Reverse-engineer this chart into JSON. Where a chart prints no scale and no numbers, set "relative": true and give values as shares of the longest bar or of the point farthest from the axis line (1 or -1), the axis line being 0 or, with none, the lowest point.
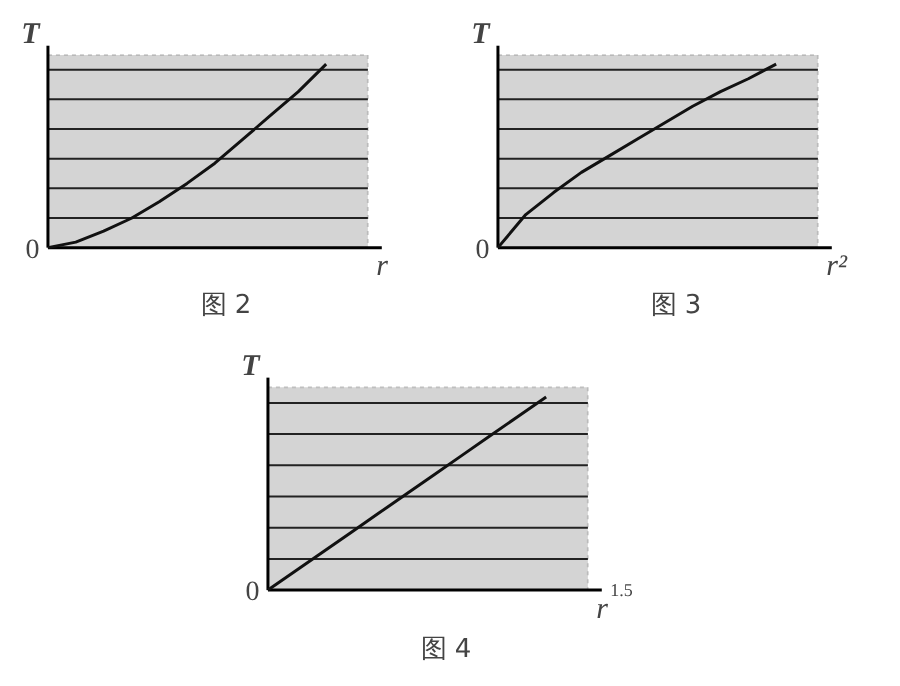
{
  "chart_data": [
    {
      "type": "line",
      "title": "图 2",
      "xlabel": "r",
      "ylabel": "T",
      "relative": true,
      "grid": "y",
      "color": "#111111",
      "annotations": [
        "0"
      ],
      "categories": [
        null,
        null,
        null,
        null,
        null,
        null,
        null,
        null,
        null,
        null,
        null
      ],
      "values": [
        0,
        0.03,
        0.09,
        0.16,
        0.25,
        0.35,
        0.46,
        0.59,
        0.72,
        0.85,
        1.0
      ]
    },
    {
      "type": "line",
      "title": "图 3",
      "xlabel": "r²",
      "ylabel": "T",
      "relative": true,
      "grid": "y",
      "color": "#111111",
      "annotations": [
        "0"
      ],
      "categories": [
        null,
        null,
        null,
        null,
        null,
        null,
        null,
        null,
        null,
        null,
        null
      ],
      "values": [
        0,
        0.18,
        0.3,
        0.41,
        0.5,
        0.59,
        0.68,
        0.77,
        0.85,
        0.92,
        1.0
      ]
    },
    {
      "type": "line",
      "title": "图 4",
      "xlabel": "r$^{1.5}$",
      "ylabel": "T",
      "relative": true,
      "grid": "y",
      "color": "#111111",
      "annotations": [
        "0"
      ],
      "categories": [
        null,
        null,
        null,
        null,
        null,
        null,
        null,
        null,
        null,
        null,
        null
      ],
      "values": [
        0,
        0.1,
        0.2,
        0.3,
        0.4,
        0.5,
        0.6,
        0.7,
        0.8,
        0.9,
        1.0
      ]
    }
  ]
}
